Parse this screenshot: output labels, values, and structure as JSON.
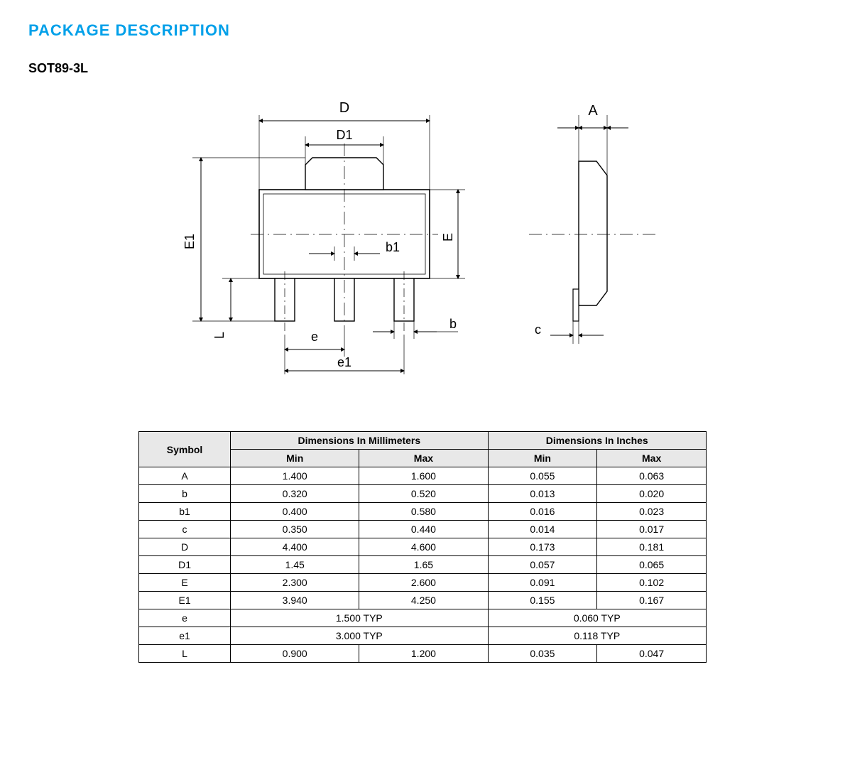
{
  "section_title": "PACKAGE DESCRIPTION",
  "subtitle": "SOT89-3L",
  "diagram": {
    "labels": {
      "D": "D",
      "D1": "D1",
      "A": "A",
      "E": "E",
      "E1": "E1",
      "L": "L",
      "b": "b",
      "b1": "b1",
      "c": "c",
      "e": "e",
      "e1": "e1"
    }
  },
  "table": {
    "header_symbol": "Symbol",
    "header_mm": "Dimensions In Millimeters",
    "header_in": "Dimensions In Inches",
    "header_min": "Min",
    "header_max": "Max",
    "rows": [
      {
        "sym": "A",
        "mm_min": "1.400",
        "mm_max": "1.600",
        "in_min": "0.055",
        "in_max": "0.063"
      },
      {
        "sym": "b",
        "mm_min": "0.320",
        "mm_max": "0.520",
        "in_min": "0.013",
        "in_max": "0.020"
      },
      {
        "sym": "b1",
        "mm_min": "0.400",
        "mm_max": "0.580",
        "in_min": "0.016",
        "in_max": "0.023"
      },
      {
        "sym": "c",
        "mm_min": "0.350",
        "mm_max": "0.440",
        "in_min": "0.014",
        "in_max": "0.017"
      },
      {
        "sym": "D",
        "mm_min": "4.400",
        "mm_max": "4.600",
        "in_min": "0.173",
        "in_max": "0.181"
      },
      {
        "sym": "D1",
        "mm_min": "1.45",
        "mm_max": "1.65",
        "in_min": "0.057",
        "in_max": "0.065"
      },
      {
        "sym": "E",
        "mm_min": "2.300",
        "mm_max": "2.600",
        "in_min": "0.091",
        "in_max": "0.102"
      },
      {
        "sym": "E1",
        "mm_min": "3.940",
        "mm_max": "4.250",
        "in_min": "0.155",
        "in_max": "0.167"
      },
      {
        "sym": "e",
        "mm_span": "1.500 TYP",
        "in_span": "0.060 TYP"
      },
      {
        "sym": "e1",
        "mm_span": "3.000 TYP",
        "in_span": "0.118 TYP"
      },
      {
        "sym": "L",
        "mm_min": "0.900",
        "mm_max": "1.200",
        "in_min": "0.035",
        "in_max": "0.047"
      }
    ]
  }
}
